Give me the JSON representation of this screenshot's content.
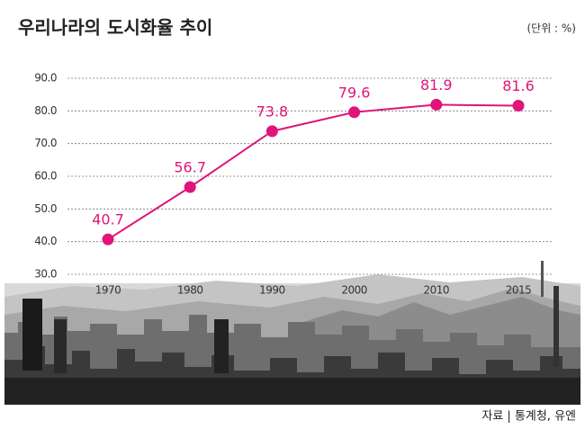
{
  "chart_data": {
    "type": "line",
    "title": "우리나라의 도시화율 추이",
    "subtitle": "(단위 : %)",
    "source": "자료 | 통계청, 유엔",
    "categories": [
      "1970",
      "1980",
      "1990",
      "2000",
      "2010",
      "2015"
    ],
    "values": [
      40.7,
      56.7,
      73.8,
      79.6,
      81.9,
      81.6
    ],
    "color": "#e0147b",
    "ylim": [
      30,
      90
    ],
    "yticks": [
      {
        "value": 30,
        "label": "30.0"
      },
      {
        "value": 40,
        "label": "40.0"
      },
      {
        "value": 50,
        "label": "50.0"
      },
      {
        "value": 60,
        "label": "60.0"
      },
      {
        "value": 70,
        "label": "70.0"
      },
      {
        "value": 80,
        "label": "80.0"
      },
      {
        "value": 90,
        "label": "90.0"
      }
    ],
    "grid": true
  }
}
